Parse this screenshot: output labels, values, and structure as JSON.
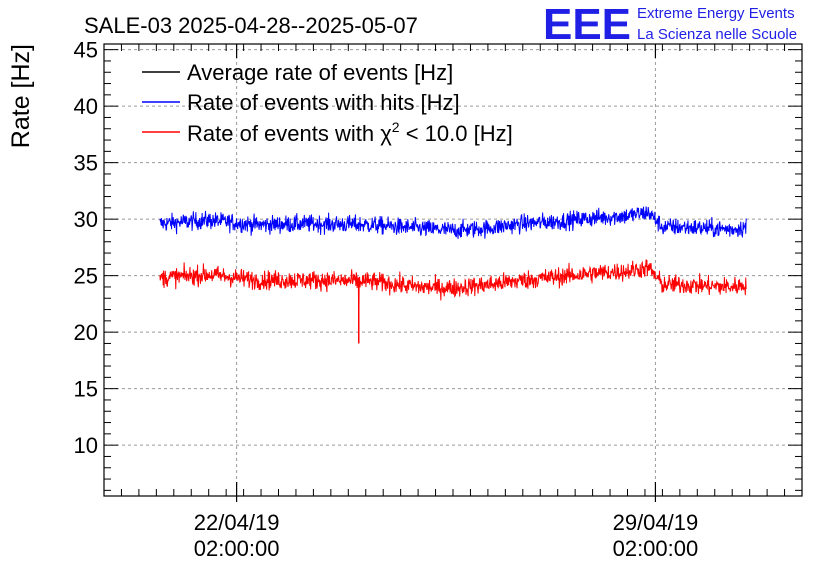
{
  "chart_data": {
    "type": "line",
    "title": "SALE-03 2025-04-28--2025-05-07",
    "xlabel": "",
    "ylabel": "Rate [Hz]",
    "ylim": [
      5.5,
      45.5
    ],
    "yticks": [
      10,
      15,
      20,
      25,
      30,
      35,
      40,
      45
    ],
    "grid": true,
    "legend_position": "top-left",
    "x_range_days": [
      0,
      10
    ],
    "x_ticks": [
      {
        "day": 1.9,
        "date": "22/04/19",
        "time": "02:00:00"
      },
      {
        "day": 7.9,
        "date": "29/04/19",
        "time": "02:00:00"
      }
    ],
    "series": [
      {
        "name": "Average rate of events [Hz]",
        "color": "#000000",
        "x": [],
        "values": []
      },
      {
        "name": "Rate of events with hits [Hz]",
        "color": "#0000ff",
        "x": [
          0.8,
          1.5,
          2.2,
          3.0,
          3.8,
          4.5,
          5.0,
          5.5,
          6.0,
          6.5,
          7.0,
          7.5,
          7.8,
          8.0,
          8.3,
          8.6,
          9.0,
          9.2
        ],
        "values": [
          29.6,
          29.9,
          29.5,
          29.6,
          29.5,
          29.2,
          29.0,
          29.2,
          29.6,
          29.8,
          30.1,
          30.3,
          30.6,
          29.3,
          29.3,
          29.2,
          29.1,
          29.3
        ],
        "noise": 0.75
      },
      {
        "name": "Rate of events with χ² < 10.0 [Hz]",
        "color": "#ff0000",
        "x": [
          0.8,
          1.5,
          2.2,
          3.0,
          3.8,
          4.5,
          5.0,
          5.5,
          6.0,
          6.5,
          7.0,
          7.5,
          7.8,
          8.0,
          8.3,
          8.6,
          9.0,
          9.2
        ],
        "values": [
          24.8,
          25.1,
          24.6,
          24.6,
          24.5,
          24.0,
          23.9,
          24.2,
          24.6,
          24.9,
          25.2,
          25.4,
          25.7,
          24.2,
          24.2,
          24.1,
          24.0,
          24.2
        ],
        "noise": 0.8,
        "spike": {
          "x": 3.65,
          "value": 19.0
        }
      }
    ],
    "legend": [
      {
        "text": "Average rate of events [Hz]",
        "color": "#000000"
      },
      {
        "text": "Rate of events with hits [Hz]",
        "color": "#0000ff"
      },
      {
        "text_before": "Rate of events with ",
        "symbol": "χ",
        "sup": "2",
        "text_after": " < 10.0 [Hz]",
        "color": "#ff0000"
      }
    ]
  },
  "logo": {
    "mark": "EEE",
    "line1": "Extreme Energy Events",
    "line2": "La Scienza nelle Scuole",
    "color": "#1f1fe6"
  }
}
